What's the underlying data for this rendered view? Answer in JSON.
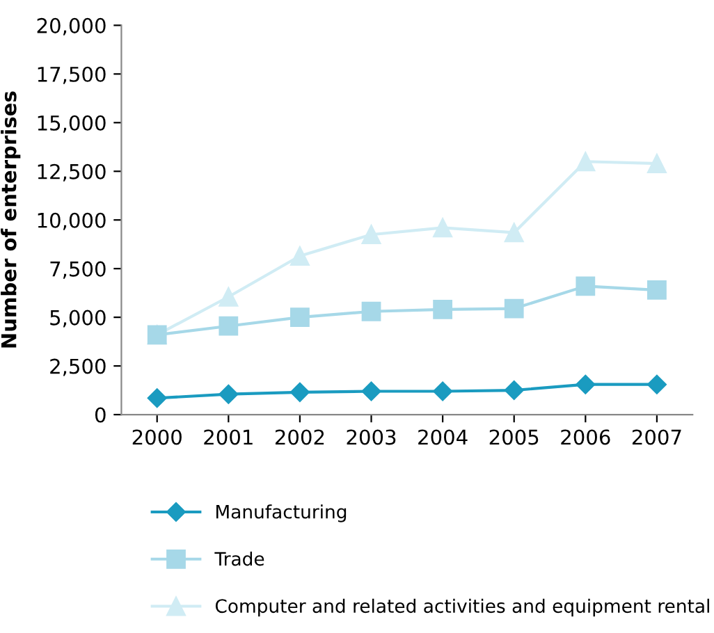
{
  "chart_data": {
    "type": "line",
    "ylabel": "Number of enterprises",
    "categories": [
      "2000",
      "2001",
      "2002",
      "2003",
      "2004",
      "2005",
      "2006",
      "2007"
    ],
    "series": [
      {
        "name": "Manufacturing",
        "color": "#1a9bc0",
        "marker": "diamond",
        "values": [
          850,
          1050,
          1150,
          1200,
          1200,
          1250,
          1550,
          1550
        ]
      },
      {
        "name": "Trade",
        "color": "#a6d8e8",
        "marker": "square",
        "values": [
          4100,
          4550,
          5000,
          5300,
          5400,
          5450,
          6600,
          6400
        ]
      },
      {
        "name": "Computer and related activities and equipment rental",
        "color": "#d0ecf4",
        "marker": "triangle",
        "values": [
          4100,
          6050,
          8150,
          9250,
          9600,
          9350,
          13000,
          12900
        ]
      }
    ],
    "ylim": [
      0,
      20000
    ],
    "yticks": [
      {
        "value": 0,
        "label": "0"
      },
      {
        "value": 2500,
        "label": "2,500"
      },
      {
        "value": 5000,
        "label": "5,000"
      },
      {
        "value": 7500,
        "label": "7,500"
      },
      {
        "value": 10000,
        "label": "10,000"
      },
      {
        "value": 12500,
        "label": "12,500"
      },
      {
        "value": 15000,
        "label": "15,000"
      },
      {
        "value": 17500,
        "label": "17,500"
      },
      {
        "value": 20000,
        "label": "20,000"
      }
    ],
    "grid": false,
    "legend": "bottom"
  }
}
